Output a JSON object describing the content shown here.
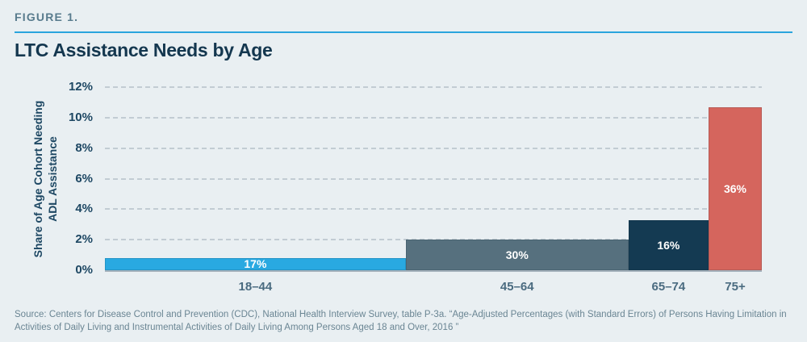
{
  "figure_label": "FIGURE 1.",
  "title": "LTC Assistance Needs by Age",
  "y_axis": {
    "title_line1": "Share of Age Cohort Needing",
    "title_line2": "ADL Assistance"
  },
  "chart_data": {
    "type": "bar",
    "variant": "variable-width-bar",
    "title": "LTC Assistance Needs by Age",
    "xlabel": "",
    "ylabel": "Share of Age Cohort Needing ADL Assistance",
    "ylim": [
      0,
      12
    ],
    "ytick_step": 2,
    "yticks": [
      "12%",
      "10%",
      "8%",
      "6%",
      "4%",
      "2%",
      "0%"
    ],
    "grid": "horizontal-dashed",
    "legend": "none",
    "categories": [
      "18–44",
      "45–64",
      "65–74",
      "75+"
    ],
    "values_pct": [
      0.8,
      2.0,
      3.3,
      10.7
    ],
    "bar_labels": [
      "17%",
      "30%",
      "16%",
      "36%"
    ],
    "bar_width_shares": [
      45.8,
      33.9,
      12.2,
      8.1
    ],
    "bar_colors": [
      "#29a9e1",
      "#56707e",
      "#143a52",
      "#d5655d"
    ]
  },
  "colors": {
    "background": "#e9eff2",
    "header_rule": "#2aa4dd",
    "title_text": "#14374f",
    "figure_label_text": "#587b8d",
    "axis_text": "#1d4763",
    "xtick_text": "#4a6b80",
    "gridline": "#c2ccd3",
    "baseline": "#a3b0ba",
    "bar_value_text": "#ffffff"
  },
  "source": {
    "line1": "Source: Centers for Disease Control and Prevention (CDC), National Health Interview Survey, table P-3a. “Age-Adjusted Percentages (with Standard Errors) of Persons Having Limitation in",
    "line2": "Activities of Daily Living and Instrumental Activities of Daily Living Among Persons Aged 18 and Over, 2016 ”"
  }
}
